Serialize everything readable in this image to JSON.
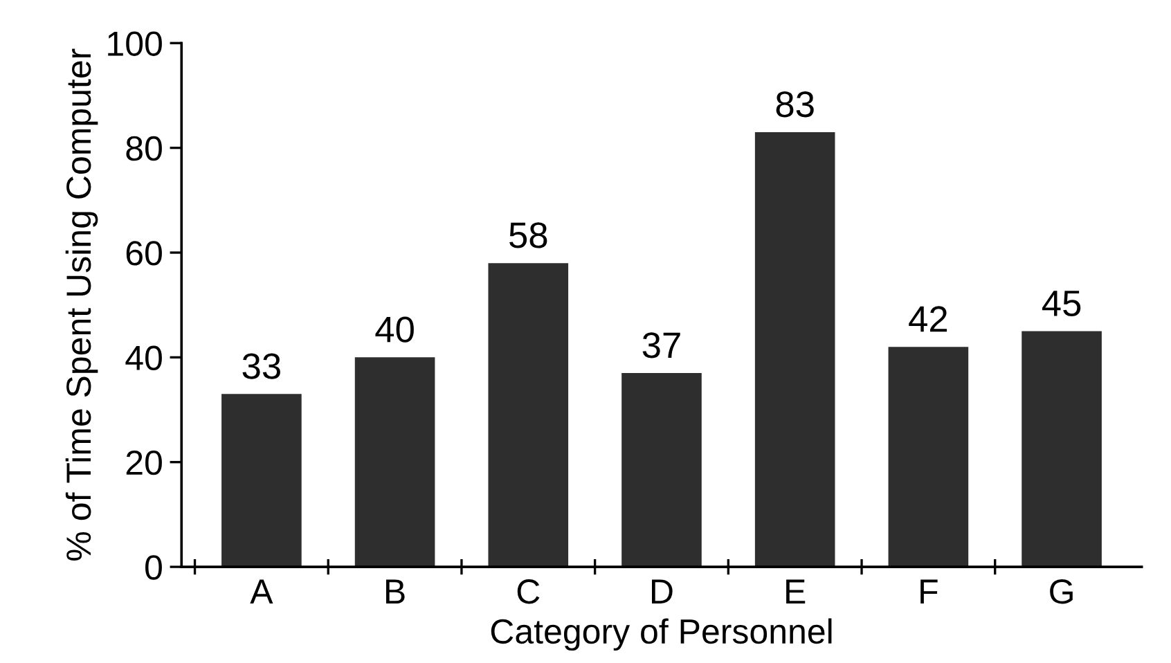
{
  "chart_data": {
    "type": "bar",
    "xlabel": "Category of Personnel",
    "ylabel": "% of Time Spent Using Computer",
    "categories": [
      "A",
      "B",
      "C",
      "D",
      "E",
      "F",
      "G"
    ],
    "values": [
      33,
      40,
      58,
      37,
      83,
      42,
      45
    ],
    "color": "#2e2e2e",
    "ylim": [
      0,
      100
    ],
    "yticks": [
      0,
      20,
      40,
      60,
      80,
      100
    ],
    "data_labels": true,
    "grid": false,
    "legend": false
  }
}
